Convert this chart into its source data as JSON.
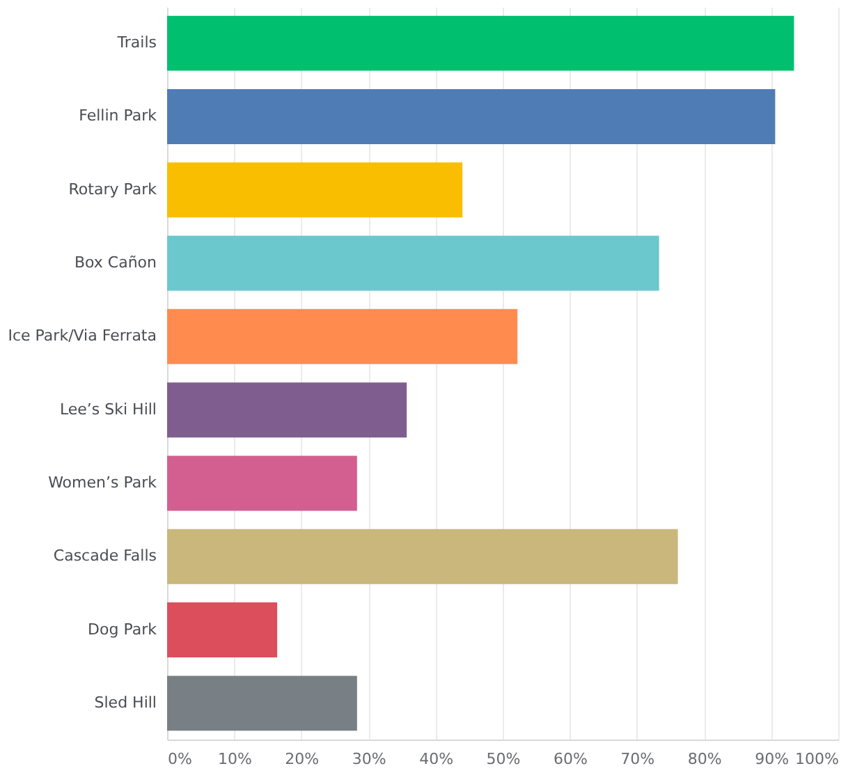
{
  "chart_data": {
    "type": "bar",
    "orientation": "horizontal",
    "categories": [
      "Trails",
      "Fellin Park",
      "Rotary Park",
      "Box Cañon",
      "Ice Park/Via Ferrata",
      "Lee’s Ski Hill",
      "Women’s Park",
      "Cascade Falls",
      "Dog Park",
      "Sled Hill"
    ],
    "values": [
      93.4,
      90.6,
      44.0,
      73.3,
      52.2,
      35.7,
      28.3,
      76.1,
      16.4,
      28.3
    ],
    "colors": [
      "#00bf6f",
      "#507cb6",
      "#f9be00",
      "#6bc8cd",
      "#ff8b4f",
      "#7f5e8f",
      "#d25f90",
      "#c9b77b",
      "#dc4e5c",
      "#787f85"
    ],
    "xlim": [
      0,
      100
    ],
    "xticks": [
      {
        "value": 0,
        "label": "0%"
      },
      {
        "value": 10,
        "label": "10%"
      },
      {
        "value": 20,
        "label": "20%"
      },
      {
        "value": 30,
        "label": "30%"
      },
      {
        "value": 40,
        "label": "40%"
      },
      {
        "value": 50,
        "label": "50%"
      },
      {
        "value": 60,
        "label": "60%"
      },
      {
        "value": 70,
        "label": "70%"
      },
      {
        "value": 80,
        "label": "80%"
      },
      {
        "value": 90,
        "label": "90%"
      },
      {
        "value": 100,
        "label": "100%"
      }
    ],
    "grid": "x"
  }
}
